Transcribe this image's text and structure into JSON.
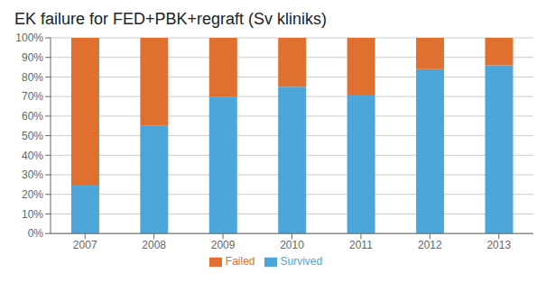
{
  "chart_data": {
    "type": "bar",
    "stacked": true,
    "title": "EK failure for FED+PBK+regraft (Sv kliniks)",
    "categories": [
      "2007",
      "2008",
      "2009",
      "2010",
      "2011",
      "2012",
      "2013"
    ],
    "series": [
      {
        "name": "Survived",
        "color": "#4da6d9",
        "values": [
          25,
          55,
          70,
          75,
          71,
          84,
          86
        ]
      },
      {
        "name": "Failed",
        "color": "#e07030",
        "values": [
          75,
          45,
          30,
          25,
          29,
          16,
          14
        ]
      }
    ],
    "ylim": [
      0,
      100
    ],
    "yticks": [
      {
        "value": 0,
        "label": "0%"
      },
      {
        "value": 10,
        "label": "10%"
      },
      {
        "value": 20,
        "label": "20%"
      },
      {
        "value": 30,
        "label": "30%"
      },
      {
        "value": 40,
        "label": "40%"
      },
      {
        "value": 50,
        "label": "50%"
      },
      {
        "value": 60,
        "label": "60%"
      },
      {
        "value": 70,
        "label": "70%"
      },
      {
        "value": 80,
        "label": "80%"
      },
      {
        "value": 90,
        "label": "90%"
      },
      {
        "value": 100,
        "label": "100%"
      }
    ],
    "grid": true,
    "legend": "bottom"
  }
}
